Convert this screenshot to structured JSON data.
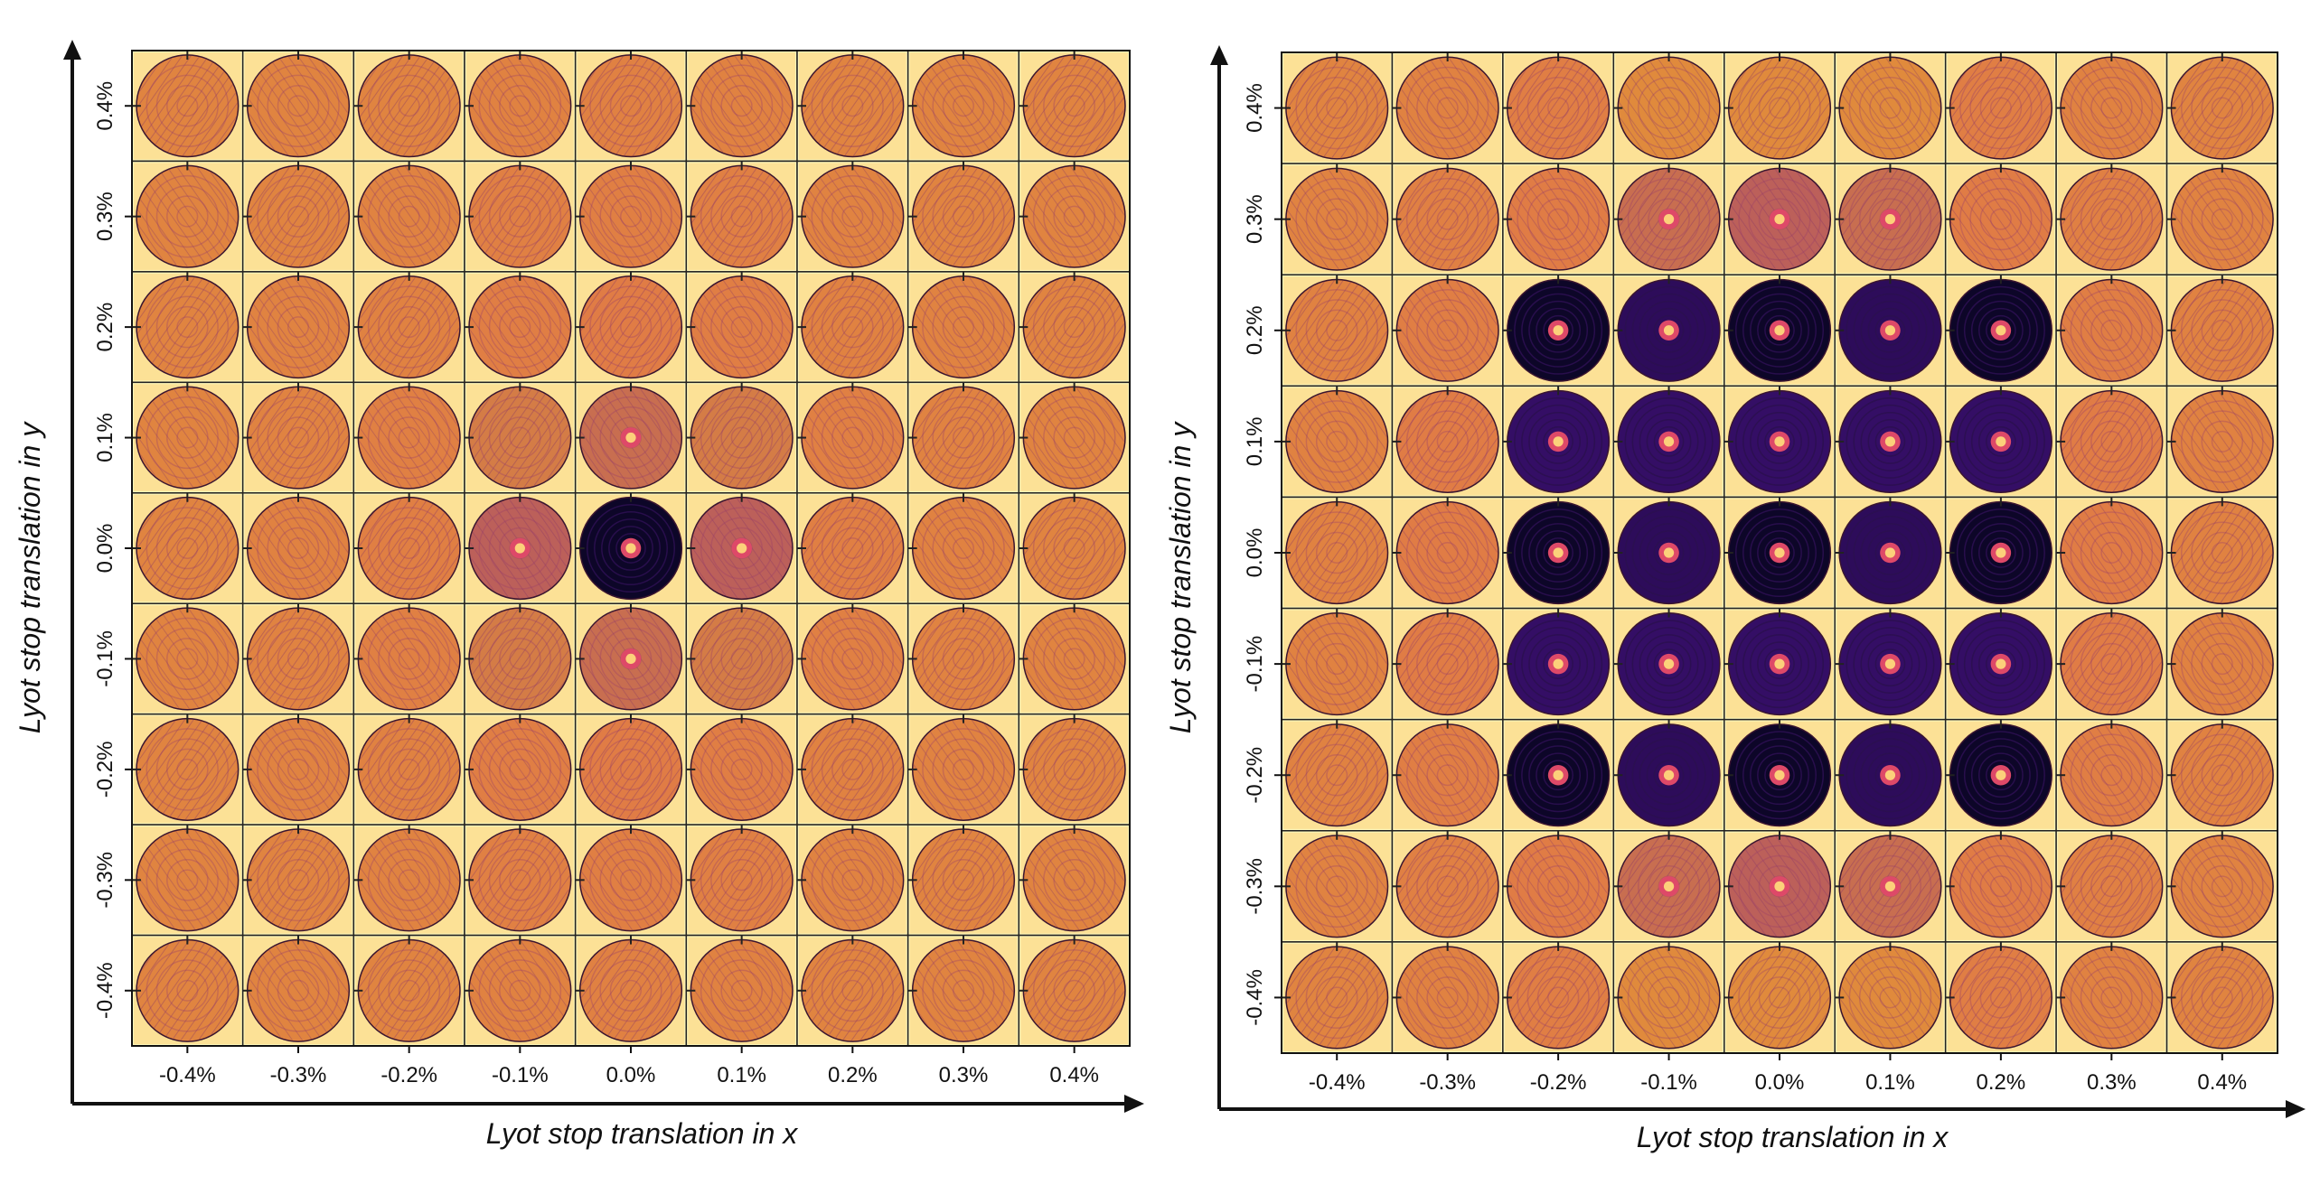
{
  "chart_data": [
    {
      "type": "heatmap",
      "title": "",
      "xlabel": "Lyot stop translation in x",
      "ylabel": "Lyot stop translation in y",
      "x_ticks": [
        "-0.4%",
        "-0.3%",
        "-0.2%",
        "-0.1%",
        "0.0%",
        "0.1%",
        "0.2%",
        "0.3%",
        "0.4%"
      ],
      "y_ticks": [
        "0.4%",
        "0.3%",
        "0.2%",
        "0.1%",
        "0.0%",
        "-0.1%",
        "-0.2%",
        "-0.3%",
        "-0.4%"
      ],
      "cell_content": "pupil-plane intensity image per translation",
      "colormap": "inferno",
      "colors": {
        "dark": "#0d0628",
        "mid_dark": "#3b0f70",
        "mid": "#8c2981",
        "mid_light": "#de4968",
        "orange": "#e08a3c",
        "light": "#fcd07a",
        "pale": "#fcf5b8"
      },
      "darkness_grid": [
        [
          0.15,
          0.15,
          0.15,
          0.2,
          0.22,
          0.2,
          0.15,
          0.15,
          0.15
        ],
        [
          0.15,
          0.15,
          0.18,
          0.25,
          0.28,
          0.25,
          0.18,
          0.15,
          0.15
        ],
        [
          0.15,
          0.18,
          0.2,
          0.3,
          0.35,
          0.3,
          0.2,
          0.18,
          0.15
        ],
        [
          0.15,
          0.18,
          0.25,
          0.45,
          0.5,
          0.45,
          0.25,
          0.18,
          0.15
        ],
        [
          0.15,
          0.2,
          0.28,
          0.55,
          1.0,
          0.55,
          0.28,
          0.2,
          0.15
        ],
        [
          0.15,
          0.18,
          0.25,
          0.45,
          0.5,
          0.45,
          0.25,
          0.18,
          0.15
        ],
        [
          0.15,
          0.18,
          0.2,
          0.3,
          0.35,
          0.3,
          0.2,
          0.18,
          0.15
        ],
        [
          0.15,
          0.15,
          0.18,
          0.25,
          0.28,
          0.25,
          0.18,
          0.15,
          0.15
        ],
        [
          0.15,
          0.15,
          0.15,
          0.2,
          0.22,
          0.2,
          0.15,
          0.15,
          0.15
        ]
      ]
    },
    {
      "type": "heatmap",
      "title": "",
      "xlabel": "Lyot stop translation in x",
      "ylabel": "Lyot stop translation in y",
      "x_ticks": [
        "-0.4%",
        "-0.3%",
        "-0.2%",
        "-0.1%",
        "0.0%",
        "0.1%",
        "0.2%",
        "0.3%",
        "0.4%"
      ],
      "y_ticks": [
        "0.4%",
        "0.3%",
        "0.2%",
        "0.1%",
        "0.0%",
        "-0.1%",
        "-0.2%",
        "-0.3%",
        "-0.4%"
      ],
      "cell_content": "pupil-plane intensity image per translation",
      "colormap": "inferno",
      "colors": {
        "dark": "#0d0628",
        "mid_dark": "#3b0f70",
        "mid": "#8c2981",
        "mid_light": "#de4968",
        "orange": "#e08a3c",
        "light": "#fcd07a",
        "pale": "#fcf5b8"
      },
      "darkness_grid": [
        [
          0.15,
          0.2,
          0.3,
          0.4,
          0.4,
          0.4,
          0.3,
          0.2,
          0.15
        ],
        [
          0.18,
          0.25,
          0.35,
          0.5,
          0.55,
          0.5,
          0.35,
          0.25,
          0.18
        ],
        [
          0.2,
          0.3,
          1.0,
          0.85,
          1.0,
          0.85,
          1.0,
          0.3,
          0.2
        ],
        [
          0.2,
          0.35,
          0.8,
          0.8,
          0.8,
          0.8,
          0.8,
          0.35,
          0.2
        ],
        [
          0.2,
          0.35,
          1.0,
          0.85,
          1.0,
          0.85,
          1.0,
          0.35,
          0.2
        ],
        [
          0.2,
          0.35,
          0.8,
          0.8,
          0.8,
          0.8,
          0.8,
          0.35,
          0.2
        ],
        [
          0.2,
          0.3,
          1.0,
          0.85,
          1.0,
          0.85,
          1.0,
          0.3,
          0.2
        ],
        [
          0.18,
          0.25,
          0.35,
          0.5,
          0.55,
          0.5,
          0.35,
          0.25,
          0.18
        ],
        [
          0.15,
          0.2,
          0.3,
          0.4,
          0.4,
          0.4,
          0.3,
          0.2,
          0.15
        ]
      ]
    }
  ]
}
